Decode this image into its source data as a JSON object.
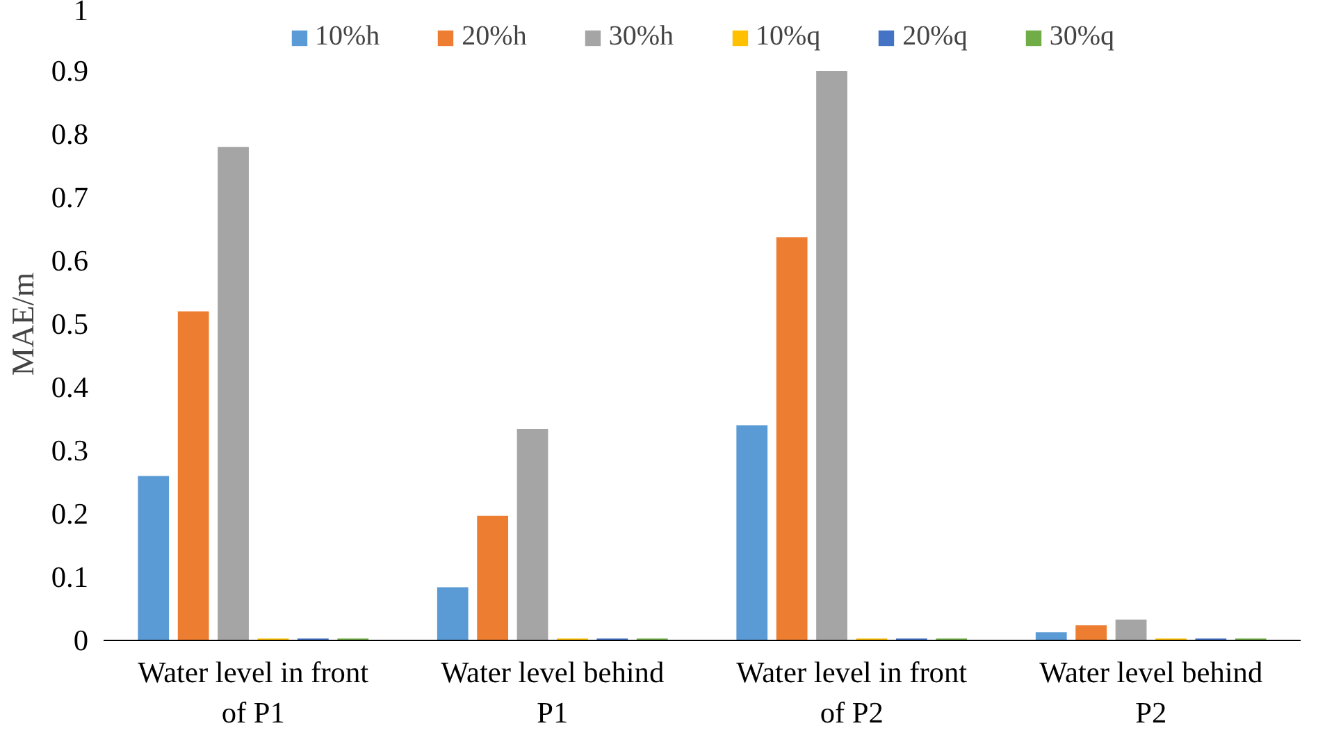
{
  "chart_data": {
    "type": "bar",
    "ylabel": "MAE/m",
    "categories": [
      "Water level in front of P1",
      "Water level behind P1",
      "Water level in front of P2",
      "Water level behind P2"
    ],
    "series": [
      {
        "name": "10%h",
        "color": "#5b9bd5",
        "values": [
          0.26,
          0.084,
          0.34,
          0.013
        ]
      },
      {
        "name": "20%h",
        "color": "#ed7d31",
        "values": [
          0.52,
          0.197,
          0.637,
          0.024
        ]
      },
      {
        "name": "30%h",
        "color": "#a5a5a5",
        "values": [
          0.78,
          0.334,
          0.9,
          0.033
        ]
      },
      {
        "name": "10%q",
        "color": "#ffc000",
        "values": [
          0.003,
          0.003,
          0.003,
          0.003
        ]
      },
      {
        "name": "20%q",
        "color": "#4472c4",
        "values": [
          0.003,
          0.003,
          0.003,
          0.003
        ]
      },
      {
        "name": "30%q",
        "color": "#70ad47",
        "values": [
          0.003,
          0.003,
          0.003,
          0.003
        ]
      }
    ],
    "ylim": [
      0,
      1
    ],
    "yticks": [
      0,
      0.1,
      0.2,
      0.3,
      0.4,
      0.5,
      0.6,
      0.7,
      0.8,
      0.9,
      1
    ],
    "grid": false,
    "legend": "top"
  }
}
